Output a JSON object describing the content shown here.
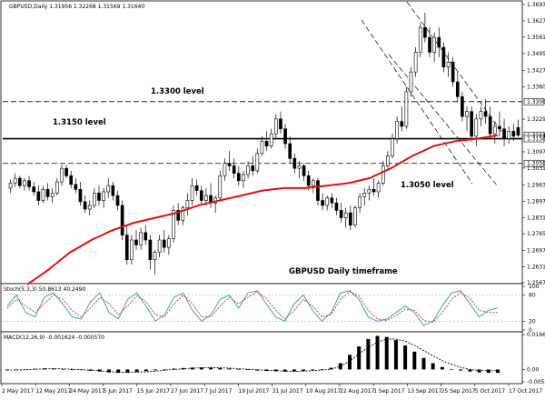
{
  "window": {
    "symbol_line": "GBPUSD,Daily  1.31956 1.32268 1.31569 1.31640",
    "timeframe_note": "GBPUSD Daily timeframe"
  },
  "price_pane": {
    "levels": [
      {
        "price": 1.33,
        "label": "1.3300 level",
        "style": "dashed"
      },
      {
        "price": 1.315,
        "label": "1.3150 level",
        "style": "solid"
      },
      {
        "price": 1.305,
        "label": "1.3050 level",
        "style": "dashed"
      }
    ],
    "axis_ticks": [
      "1.36930",
      "1.36270",
      "1.35610",
      "1.34950",
      "1.34270",
      "1.33600",
      "1.33000",
      "1.32290",
      "1.31640",
      "1.31500",
      "1.30970",
      "1.30500",
      "1.30310",
      "1.29630",
      "1.28970",
      "1.28310",
      "1.27650",
      "1.26970",
      "1.26310",
      "1.25670"
    ],
    "highlight_ticks": [
      "1.33000",
      "1.31640",
      "1.31500",
      "1.30500"
    ]
  },
  "stoch_pane": {
    "title": "Stoch(5,3,3) 50.8613 40.2490",
    "axis_ticks": [
      "100",
      "80",
      "20",
      "0"
    ]
  },
  "macd_pane": {
    "title": "MACD(12,26,9) -0.001624 -0.000570",
    "axis_ticks": [
      "0.016647",
      "0.00",
      "-0.005881"
    ]
  },
  "x_axis": {
    "labels": [
      "2 May 2017",
      "12 May 2017",
      "24 May 2017",
      "5 Jun 2017",
      "15 Jun 2017",
      "27 Jun 2017",
      "7 Jul 2017",
      "19 Jul 2017",
      "31 Jul 2017",
      "10 Aug 2017",
      "22 Aug 2017",
      "1 Sep 2017",
      "13 Sep 2017",
      "25 Sep 2017",
      "5 Oct 2017",
      "17 Oct 2017"
    ]
  },
  "chart_data": {
    "type": "candlestick",
    "series": [
      {
        "name": "GBPUSD Daily",
        "ohlc_approx": [
          [
            1.295,
            1.2985,
            1.293,
            1.297
          ],
          [
            1.297,
            1.301,
            1.2955,
            1.299
          ],
          [
            1.299,
            1.3,
            1.295,
            1.296
          ],
          [
            1.296,
            1.299,
            1.294,
            1.298
          ],
          [
            1.298,
            1.3,
            1.294,
            1.2955
          ],
          [
            1.2955,
            1.2975,
            1.292,
            1.2935
          ],
          [
            1.2935,
            1.296,
            1.288,
            1.29
          ],
          [
            1.29,
            1.296,
            1.289,
            1.2945
          ],
          [
            1.2945,
            1.297,
            1.29,
            1.2915
          ],
          [
            1.2915,
            1.295,
            1.289,
            1.293
          ],
          [
            1.293,
            1.299,
            1.292,
            1.2975
          ],
          [
            1.2975,
            1.3045,
            1.296,
            1.303
          ],
          [
            1.303,
            1.3045,
            1.299,
            1.3
          ],
          [
            1.3,
            1.302,
            1.295,
            1.2965
          ],
          [
            1.2965,
            1.299,
            1.293,
            1.2945
          ],
          [
            1.2945,
            1.2975,
            1.288,
            1.2895
          ],
          [
            1.2895,
            1.292,
            1.285,
            1.2865
          ],
          [
            1.2865,
            1.29,
            1.284,
            1.288
          ],
          [
            1.288,
            1.295,
            1.287,
            1.293
          ],
          [
            1.293,
            1.296,
            1.288,
            1.29
          ],
          [
            1.29,
            1.295,
            1.287,
            1.2935
          ],
          [
            1.2935,
            1.299,
            1.291,
            1.296
          ],
          [
            1.296,
            1.2975,
            1.29,
            1.292
          ],
          [
            1.292,
            1.294,
            1.286,
            1.288
          ],
          [
            1.288,
            1.29,
            1.274,
            1.276
          ],
          [
            1.276,
            1.28,
            1.264,
            1.266
          ],
          [
            1.266,
            1.276,
            1.264,
            1.274
          ],
          [
            1.274,
            1.278,
            1.27,
            1.272
          ],
          [
            1.272,
            1.279,
            1.27,
            1.277
          ],
          [
            1.277,
            1.28,
            1.272,
            1.274
          ],
          [
            1.274,
            1.276,
            1.262,
            1.266
          ],
          [
            1.266,
            1.27,
            1.26,
            1.269
          ],
          [
            1.269,
            1.276,
            1.267,
            1.274
          ],
          [
            1.274,
            1.278,
            1.269,
            1.271
          ],
          [
            1.271,
            1.276,
            1.268,
            1.2745
          ],
          [
            1.2745,
            1.288,
            1.273,
            1.286
          ],
          [
            1.286,
            1.289,
            1.28,
            1.282
          ],
          [
            1.282,
            1.288,
            1.28,
            1.287
          ],
          [
            1.287,
            1.293,
            1.284,
            1.29
          ],
          [
            1.29,
            1.299,
            1.288,
            1.296
          ],
          [
            1.296,
            1.2985,
            1.292,
            1.294
          ],
          [
            1.294,
            1.296,
            1.288,
            1.29
          ],
          [
            1.29,
            1.295,
            1.288,
            1.292
          ],
          [
            1.292,
            1.297,
            1.287,
            1.289
          ],
          [
            1.289,
            1.292,
            1.285,
            1.291
          ],
          [
            1.291,
            1.302,
            1.29,
            1.3
          ],
          [
            1.3,
            1.307,
            1.298,
            1.305
          ],
          [
            1.305,
            1.31,
            1.302,
            1.304
          ],
          [
            1.304,
            1.307,
            1.299,
            1.301
          ],
          [
            1.301,
            1.304,
            1.296,
            1.298
          ],
          [
            1.298,
            1.302,
            1.295,
            1.3005
          ],
          [
            1.3005,
            1.306,
            1.299,
            1.304
          ],
          [
            1.304,
            1.308,
            1.3,
            1.302
          ],
          [
            1.302,
            1.311,
            1.301,
            1.309
          ],
          [
            1.309,
            1.316,
            1.308,
            1.314
          ],
          [
            1.314,
            1.318,
            1.31,
            1.312
          ],
          [
            1.312,
            1.319,
            1.311,
            1.317
          ],
          [
            1.317,
            1.325,
            1.315,
            1.323
          ],
          [
            1.323,
            1.326,
            1.317,
            1.319
          ],
          [
            1.319,
            1.321,
            1.311,
            1.313
          ],
          [
            1.313,
            1.316,
            1.305,
            1.307
          ],
          [
            1.307,
            1.309,
            1.301,
            1.303
          ],
          [
            1.303,
            1.306,
            1.299,
            1.304
          ],
          [
            1.304,
            1.305,
            1.298,
            1.3
          ],
          [
            1.3,
            1.302,
            1.294,
            1.296
          ],
          [
            1.296,
            1.299,
            1.293,
            1.298
          ],
          [
            1.298,
            1.299,
            1.288,
            1.29
          ],
          [
            1.29,
            1.293,
            1.286,
            1.288
          ],
          [
            1.288,
            1.292,
            1.286,
            1.291
          ],
          [
            1.291,
            1.293,
            1.287,
            1.289
          ],
          [
            1.289,
            1.291,
            1.284,
            1.286
          ],
          [
            1.286,
            1.289,
            1.281,
            1.283
          ],
          [
            1.283,
            1.287,
            1.279,
            1.285
          ],
          [
            1.285,
            1.288,
            1.278,
            1.28
          ],
          [
            1.28,
            1.288,
            1.279,
            1.287
          ],
          [
            1.287,
            1.293,
            1.285,
            1.2915
          ],
          [
            1.2915,
            1.295,
            1.288,
            1.293
          ],
          [
            1.293,
            1.296,
            1.29,
            1.2945
          ],
          [
            1.2945,
            1.299,
            1.292,
            1.2935
          ],
          [
            1.2935,
            1.298,
            1.291,
            1.297
          ],
          [
            1.297,
            1.306,
            1.296,
            1.304
          ],
          [
            1.304,
            1.31,
            1.302,
            1.308
          ],
          [
            1.308,
            1.317,
            1.307,
            1.315
          ],
          [
            1.315,
            1.324,
            1.313,
            1.322
          ],
          [
            1.322,
            1.328,
            1.318,
            1.32
          ],
          [
            1.32,
            1.336,
            1.319,
            1.334
          ],
          [
            1.334,
            1.344,
            1.332,
            1.342
          ],
          [
            1.342,
            1.352,
            1.34,
            1.35
          ],
          [
            1.35,
            1.362,
            1.348,
            1.36
          ],
          [
            1.36,
            1.366,
            1.354,
            1.356
          ],
          [
            1.356,
            1.36,
            1.348,
            1.35
          ],
          [
            1.35,
            1.358,
            1.346,
            1.356
          ],
          [
            1.356,
            1.36,
            1.348,
            1.352
          ],
          [
            1.352,
            1.354,
            1.342,
            1.344
          ],
          [
            1.344,
            1.35,
            1.34,
            1.346
          ],
          [
            1.346,
            1.348,
            1.336,
            1.338
          ],
          [
            1.338,
            1.342,
            1.33,
            1.332
          ],
          [
            1.332,
            1.334,
            1.322,
            1.324
          ],
          [
            1.324,
            1.328,
            1.318,
            1.326
          ],
          [
            1.326,
            1.328,
            1.314,
            1.316
          ],
          [
            1.316,
            1.325,
            1.312,
            1.323
          ],
          [
            1.323,
            1.328,
            1.32,
            1.326
          ],
          [
            1.326,
            1.331,
            1.321,
            1.324
          ],
          [
            1.324,
            1.328,
            1.315,
            1.317
          ],
          [
            1.317,
            1.322,
            1.313,
            1.32
          ],
          [
            1.32,
            1.326,
            1.316,
            1.319
          ],
          [
            1.319,
            1.323,
            1.312,
            1.315
          ],
          [
            1.315,
            1.32,
            1.313,
            1.318
          ],
          [
            1.318,
            1.321,
            1.314,
            1.316
          ],
          [
            1.3195,
            1.3227,
            1.3157,
            1.3164
          ]
        ]
      },
      {
        "name": "Moving average (red)",
        "values_approx_every_5": [
          1.256,
          1.262,
          1.269,
          1.274,
          1.278,
          1.281,
          1.283,
          1.285,
          1.288,
          1.29,
          1.292,
          1.294,
          1.295,
          1.295,
          1.296,
          1.297,
          1.299,
          1.303,
          1.308,
          1.312,
          1.314,
          1.315,
          1.3164
        ]
      }
    ],
    "stoch_approx": {
      "k": [
        55,
        80,
        40,
        30,
        75,
        85,
        60,
        30,
        25,
        65,
        85,
        40,
        25,
        70,
        85,
        55,
        20,
        35,
        75,
        85,
        45,
        20,
        35,
        70,
        80,
        50,
        85,
        90,
        60,
        30,
        20,
        60,
        80,
        45,
        20,
        40,
        85,
        90,
        70,
        30,
        20,
        25,
        40,
        55,
        40,
        10,
        20,
        55,
        85,
        90,
        60,
        30,
        45,
        51
      ],
      "d": [
        50,
        70,
        55,
        40,
        60,
        80,
        70,
        45,
        30,
        50,
        75,
        60,
        35,
        55,
        78,
        65,
        35,
        30,
        60,
        80,
        60,
        30,
        30,
        55,
        75,
        60,
        75,
        88,
        72,
        45,
        25,
        45,
        70,
        55,
        30,
        35,
        70,
        88,
        78,
        45,
        25,
        22,
        32,
        48,
        45,
        22,
        18,
        40,
        70,
        86,
        72,
        45,
        40,
        40
      ]
    },
    "macd_approx": {
      "hist": [
        -0.0004,
        -0.0002,
        0.0,
        0.0003,
        0.0005,
        0.0004,
        0.0002,
        0.0,
        -0.0003,
        -0.0006,
        -0.001,
        -0.0014,
        -0.0016,
        -0.0015,
        -0.0012,
        -0.0008,
        -0.0004,
        0.0,
        0.0004,
        0.0007,
        0.0009,
        0.001,
        0.0009,
        0.0007,
        0.0004,
        0.0001,
        -0.0002,
        -0.0005,
        -0.0007,
        -0.0009,
        -0.001,
        -0.0009,
        -0.0007,
        -0.0004,
        0.0001,
        0.0008,
        0.003,
        0.007,
        0.011,
        0.0145,
        0.016,
        0.0155,
        0.014,
        0.0115,
        0.0085,
        0.0055,
        0.003,
        0.0012,
        0.0002,
        -0.0005,
        -0.001,
        -0.0014,
        -0.0016,
        -0.0016
      ],
      "signal": [
        -0.0003,
        -0.0003,
        -0.0001,
        0.0001,
        0.0003,
        0.0004,
        0.0003,
        0.0001,
        -0.0001,
        -0.0004,
        -0.0007,
        -0.001,
        -0.0013,
        -0.0014,
        -0.0013,
        -0.0011,
        -0.0008,
        -0.0004,
        0.0,
        0.0003,
        0.0006,
        0.0008,
        0.0009,
        0.0008,
        0.0006,
        0.0004,
        0.0001,
        -0.0002,
        -0.0004,
        -0.0006,
        -0.0008,
        -0.0009,
        -0.0008,
        -0.0006,
        -0.0003,
        0.0002,
        0.0015,
        0.004,
        0.0075,
        0.0105,
        0.013,
        0.0145,
        0.0145,
        0.0135,
        0.0115,
        0.009,
        0.0065,
        0.0042,
        0.0025,
        0.001,
        0.0,
        -0.0005,
        -0.0006,
        -0.0006
      ]
    },
    "price_range": [
      1.2567,
      1.3693
    ],
    "stoch_range": [
      0,
      100
    ],
    "macd_range": [
      -0.005881,
      0.016647
    ]
  }
}
